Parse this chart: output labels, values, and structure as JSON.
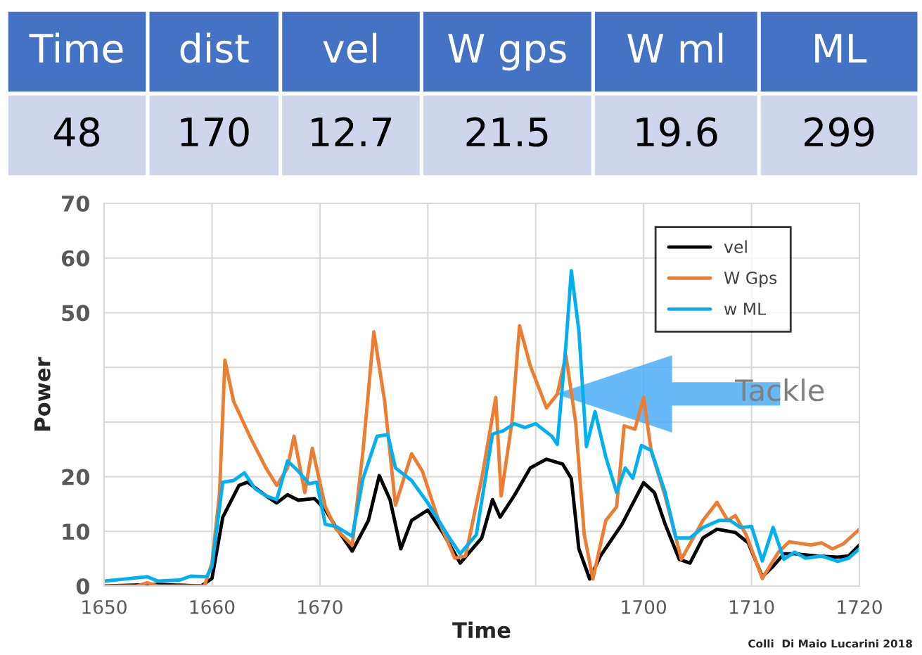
{
  "chart_data": [
    {
      "type": "other",
      "categories": [
        "Time",
        "dist",
        "vel",
        "W gps",
        "W ml",
        "ML"
      ],
      "values": [
        48,
        170,
        12.7,
        21.5,
        19.6,
        299
      ],
      "data_labels": true
    },
    {
      "type": "line",
      "xlabel": "Time",
      "ylabel": "Power",
      "xlim": [
        1650,
        1720
      ],
      "ylim": [
        0,
        70
      ],
      "xticks": [
        1650,
        1660,
        1670,
        {
          "value": 1680,
          "label": null
        },
        {
          "value": 1690,
          "label": null
        },
        1700,
        1710,
        1720
      ],
      "yticks": [
        0,
        10,
        20,
        {
          "value": 30,
          "label": null
        },
        {
          "value": 40,
          "label": null
        },
        50,
        60,
        70
      ],
      "grid": true,
      "legend": "top right",
      "line_style": "solid",
      "marker": "none",
      "annotations": [
        "Tackle",
        "Colli  Di Maio Lucarini 2018"
      ],
      "series": [
        {
          "name": "vel",
          "color": "#000000",
          "x": [
            1650,
            1655,
            1659,
            1660,
            1661,
            1662.5,
            1663.3,
            1665,
            1666,
            1667,
            1668,
            1669.5,
            1670.5,
            1671.5,
            1673,
            1674.5,
            1675.5,
            1676.5,
            1677.5,
            1678.5,
            1680,
            1681.5,
            1683,
            1685,
            1686,
            1686.7,
            1688,
            1689.5,
            1691,
            1692.5,
            1693.3,
            1694,
            1695,
            1696,
            1698,
            1700,
            1701,
            1702,
            1703.3,
            1704.3,
            1705.5,
            1706.8,
            1708.5,
            1709.7,
            1711,
            1712,
            1713,
            1714,
            1716,
            1718,
            1719,
            1720
          ],
          "values": [
            0,
            0.3,
            0,
            1.4,
            12.6,
            18.4,
            19,
            16.5,
            15.2,
            16.7,
            15.7,
            16,
            14,
            10.7,
            6.4,
            12,
            20.2,
            15.8,
            6.8,
            12,
            13.9,
            9.4,
            4.2,
            8.8,
            15.8,
            12.6,
            16.5,
            21.6,
            23.2,
            22.3,
            19.7,
            6.8,
            1.3,
            5.5,
            11.3,
            18.9,
            17.1,
            11.3,
            4.9,
            4.2,
            8.8,
            10.4,
            9.8,
            7.9,
            1.7,
            3.6,
            5.9,
            5.9,
            5.5,
            5.3,
            5.5,
            7.5
          ]
        },
        {
          "name": "W Gps",
          "color": "#ed7d31",
          "x": [
            1650,
            1653,
            1654,
            1655,
            1659.3,
            1660,
            1660.7,
            1661.2,
            1662,
            1663.5,
            1665,
            1666,
            1667,
            1667.6,
            1668.6,
            1669.3,
            1670.5,
            1671.5,
            1673,
            1674,
            1675,
            1676,
            1677,
            1678.5,
            1679.5,
            1681,
            1682.5,
            1683.5,
            1685,
            1686.3,
            1686.8,
            1687.8,
            1688.5,
            1689.5,
            1691,
            1692,
            1692.8,
            1693.7,
            1694.5,
            1695.3,
            1696.5,
            1697.5,
            1698.2,
            1699.2,
            1700,
            1700.7,
            1702,
            1703.5,
            1705.5,
            1706.8,
            1707.8,
            1708.5,
            1709.5,
            1711,
            1712.5,
            1713.5,
            1715.5,
            1716.5,
            1717.5,
            1718.5,
            1720
          ],
          "values": [
            0,
            0,
            0.6,
            0,
            0,
            4.2,
            17,
            41.3,
            33.8,
            27.4,
            21.6,
            18.4,
            21.6,
            27.4,
            17.1,
            25.2,
            14.5,
            10.4,
            7.5,
            24.8,
            46.5,
            33.8,
            14.8,
            24.2,
            21,
            12,
            5.1,
            5.5,
            19.7,
            34.5,
            16.5,
            30,
            47.6,
            40.3,
            32.6,
            35.1,
            42.2,
            30,
            9.4,
            1.3,
            12,
            14.5,
            29.3,
            28.7,
            34.5,
            24.8,
            16.4,
            4.9,
            12,
            15.3,
            12,
            12.9,
            9.4,
            1.4,
            6.2,
            8.1,
            7.5,
            7.9,
            6.8,
            7.7,
            10.4
          ]
        },
        {
          "name": "w ML",
          "color": "#00b0f0",
          "x": [
            1650,
            1652,
            1654,
            1655,
            1657,
            1658,
            1659.5,
            1660,
            1661,
            1662,
            1663,
            1664,
            1665,
            1666,
            1667,
            1668,
            1669,
            1669.7,
            1670.5,
            1671.5,
            1673,
            1674,
            1675.3,
            1676.3,
            1677,
            1678.5,
            1680,
            1682,
            1683,
            1684.5,
            1686,
            1687,
            1688,
            1689,
            1690,
            1691.5,
            1692,
            1692.8,
            1693.3,
            1694,
            1694.7,
            1695.5,
            1696.5,
            1697.5,
            1698.3,
            1699,
            1699.8,
            1700.7,
            1702,
            1703,
            1704.3,
            1705.5,
            1707,
            1708,
            1709,
            1710,
            1711,
            1712,
            1713,
            1714,
            1715,
            1716.5,
            1718,
            1719,
            1720
          ],
          "values": [
            0.9,
            1.3,
            1.7,
            0.9,
            1.1,
            1.8,
            1.7,
            3.6,
            19,
            19.3,
            20.7,
            17.8,
            16.5,
            15.8,
            22.9,
            21,
            18.7,
            19,
            11.3,
            10.9,
            9.1,
            19.7,
            27.4,
            27.7,
            21.6,
            19.3,
            15.2,
            8.8,
            5.9,
            9.4,
            27.8,
            28.4,
            29.7,
            29,
            29.7,
            27.4,
            25.9,
            44.1,
            57.7,
            46.7,
            25.5,
            31.9,
            23.6,
            17.1,
            21.6,
            19.7,
            25.7,
            24.8,
            17.1,
            8.8,
            8.8,
            10.7,
            12,
            12,
            10.7,
            10.9,
            4.6,
            10.7,
            4.9,
            6.2,
            5.1,
            5.5,
            4.5,
            5.1,
            6.8
          ]
        }
      ]
    }
  ]
}
